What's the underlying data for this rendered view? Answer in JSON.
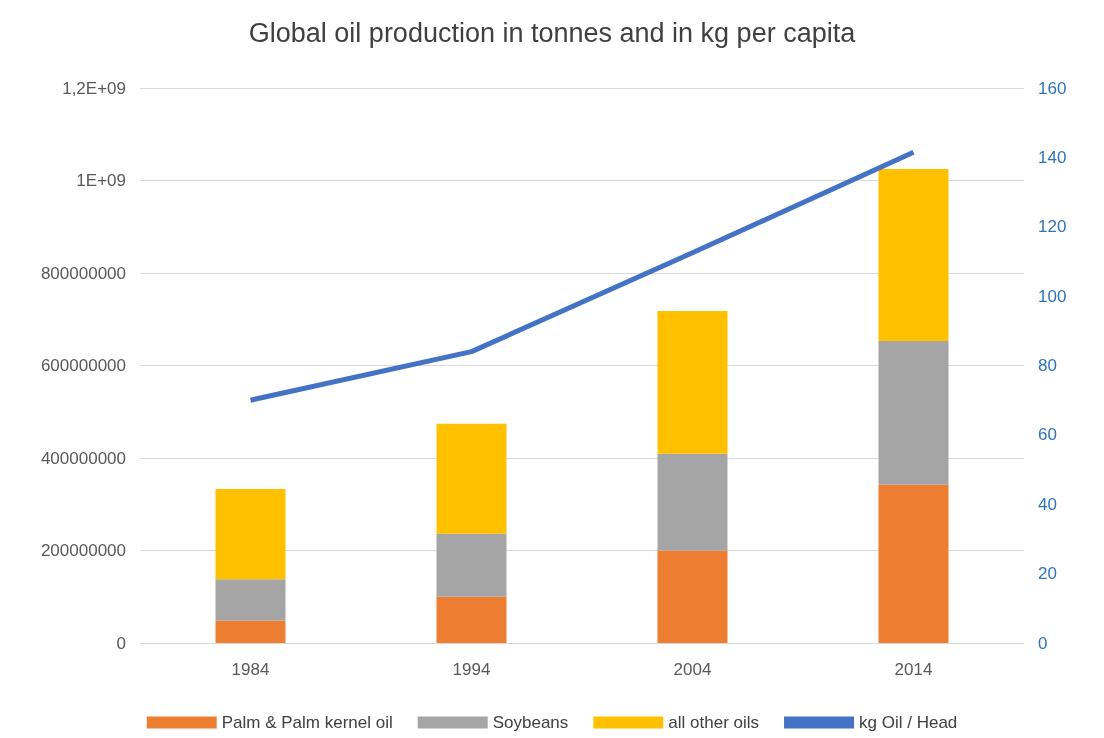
{
  "chart_data": {
    "type": "bar",
    "title": "Global oil production in tonnes and in kg per capita",
    "categories": [
      "1984",
      "1994",
      "2004",
      "2014"
    ],
    "stacked": true,
    "series": [
      {
        "name": "Palm & Palm kernel oil",
        "color": "#ed7d31",
        "values": [
          48000000,
          100000000,
          200000000,
          342000000
        ]
      },
      {
        "name": "Soybeans",
        "color": "#a5a5a5",
        "values": [
          90000000,
          136000000,
          209000000,
          311000000
        ]
      },
      {
        "name": "all other oils",
        "color": "#ffc000",
        "values": [
          195000000,
          238000000,
          309000000,
          372000000
        ]
      },
      {
        "name": "kg Oil / Head",
        "type": "line",
        "axis": "y2",
        "color": "#4472c4",
        "values": [
          70,
          84,
          112.5,
          141.5
        ]
      }
    ],
    "ylim": [
      0,
      1200000000
    ],
    "yticks": [
      0,
      200000000,
      400000000,
      600000000,
      800000000,
      {
        "value": 1000000000,
        "label": "1E+09"
      },
      {
        "value": 1200000000,
        "label": "1,2E+09"
      }
    ],
    "y2lim": [
      0,
      160
    ],
    "y2ticks": [
      0,
      20,
      40,
      60,
      80,
      100,
      120,
      140,
      160
    ],
    "grid": "y",
    "legend": "bottom",
    "marker": "none"
  }
}
